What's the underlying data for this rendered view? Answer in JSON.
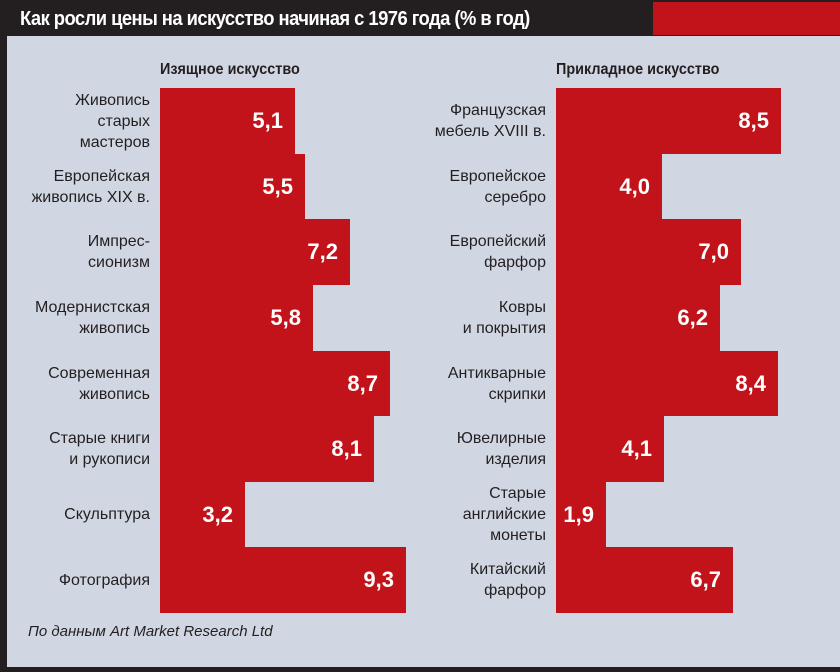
{
  "chart_data": {
    "type": "bar",
    "orientation": "horizontal",
    "title": "Как росли цены на искусство начиная с 1976 года (% в год)",
    "source": "По данным Art Market Research Ltd",
    "unit": "% в год",
    "colors": {
      "bar": "#c3131a",
      "background": "#d0d7e3",
      "header": "#231f20",
      "value_text": "#ffffff"
    },
    "panels": [
      {
        "name": "Изящное искусство",
        "categories": [
          [
            "Живопись",
            "старых",
            "мастеров"
          ],
          [
            "Европейская",
            "живопись XIX в."
          ],
          [
            "Импрес-",
            "сионизм"
          ],
          [
            "Модернистская",
            "живопись"
          ],
          [
            "Современная",
            "живопись"
          ],
          [
            "Старые книги",
            "и рукописи"
          ],
          [
            "Скульптура"
          ],
          [
            "Фотография"
          ]
        ],
        "values": [
          5.1,
          5.5,
          7.2,
          5.8,
          8.7,
          8.1,
          3.2,
          9.3
        ],
        "value_labels": [
          "5,1",
          "5,5",
          "7,2",
          "5,8",
          "8,7",
          "8,1",
          "3,2",
          "9,3"
        ]
      },
      {
        "name": "Прикладное искусство",
        "categories": [
          [
            "Французская",
            "мебель XVIII в."
          ],
          [
            "Европейское",
            "серебро"
          ],
          [
            "Европейский",
            "фарфор"
          ],
          [
            "Ковры",
            "и покрытия"
          ],
          [
            "Антикварные",
            "скрипки"
          ],
          [
            "Ювелирные",
            "изделия"
          ],
          [
            "Старые",
            "английские",
            "монеты"
          ],
          [
            "Китайский",
            "фарфор"
          ]
        ],
        "values": [
          8.5,
          4.0,
          7.0,
          6.2,
          8.4,
          4.1,
          1.9,
          6.7
        ],
        "value_labels": [
          "8,5",
          "4,0",
          "7,0",
          "6,2",
          "8,4",
          "4,1",
          "1,9",
          "6,7"
        ]
      }
    ]
  }
}
